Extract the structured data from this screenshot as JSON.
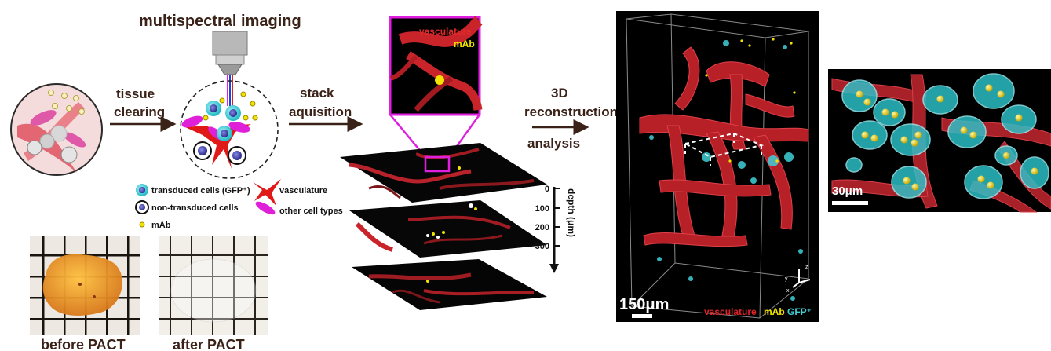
{
  "title": "multispectral imaging",
  "steps": {
    "tissue_clearing": [
      "tissue",
      "clearing"
    ],
    "stack_acquisition": [
      "stack",
      "aquisition"
    ],
    "reconstruction": [
      "3D",
      "reconstruction",
      "analysis"
    ]
  },
  "legend": {
    "transduced": "transduced cells (GFP⁺)",
    "non_transduced": "non-transduced cells",
    "mab": "mAb",
    "vasculature": "vasculature",
    "other": "other cell types"
  },
  "photos": {
    "before": "before PACT",
    "after": "after PACT"
  },
  "zoom_labels": {
    "vasculature": "vasculature",
    "mab": "mAb"
  },
  "depth_axis": {
    "label": "depth (μm)",
    "ticks": [
      "0",
      "100",
      "200",
      "300"
    ]
  },
  "render": {
    "scale_bar": "150μm",
    "legend_vasculature": "vasculature",
    "legend_mab": "mAb",
    "legend_gfp": "GFP⁺",
    "axes": [
      "z",
      "y",
      "x"
    ]
  },
  "closeup": {
    "scale_bar": "30μm"
  },
  "colors": {
    "vasculature": "#c8242a",
    "mab": "#f2e300",
    "gfp": "#3fd0d8",
    "magenta": "#e01ee0",
    "arrow": "#3a2218"
  }
}
